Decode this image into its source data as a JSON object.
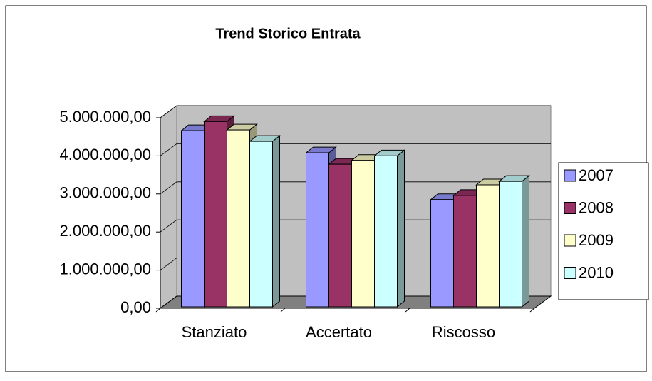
{
  "chart_data": {
    "type": "bar3d",
    "title": "Trend Storico Entrata",
    "categories": [
      "Stanziato",
      "Accertato",
      "Riscosso"
    ],
    "series": [
      {
        "name": "2007",
        "color": "#9999ff",
        "values": [
          4660000,
          4080000,
          2850000
        ]
      },
      {
        "name": "2008",
        "color": "#993366",
        "values": [
          4900000,
          3780000,
          2960000
        ]
      },
      {
        "name": "2009",
        "color": "#ffffcc",
        "values": [
          4680000,
          3880000,
          3240000
        ]
      },
      {
        "name": "2010",
        "color": "#ccffff",
        "values": [
          4380000,
          4000000,
          3330000
        ]
      }
    ],
    "ylim": [
      0,
      5000000
    ],
    "yticks": [
      {
        "value": 0,
        "label": "0,00"
      },
      {
        "value": 1000000,
        "label": "1.000.000,00"
      },
      {
        "value": 2000000,
        "label": "2.000.000,00"
      },
      {
        "value": 3000000,
        "label": "3.000.000,00"
      },
      {
        "value": 4000000,
        "label": "4.000.000,00"
      },
      {
        "value": 5000000,
        "label": "5.000.000,00"
      }
    ],
    "grid": true,
    "legend": "right"
  }
}
